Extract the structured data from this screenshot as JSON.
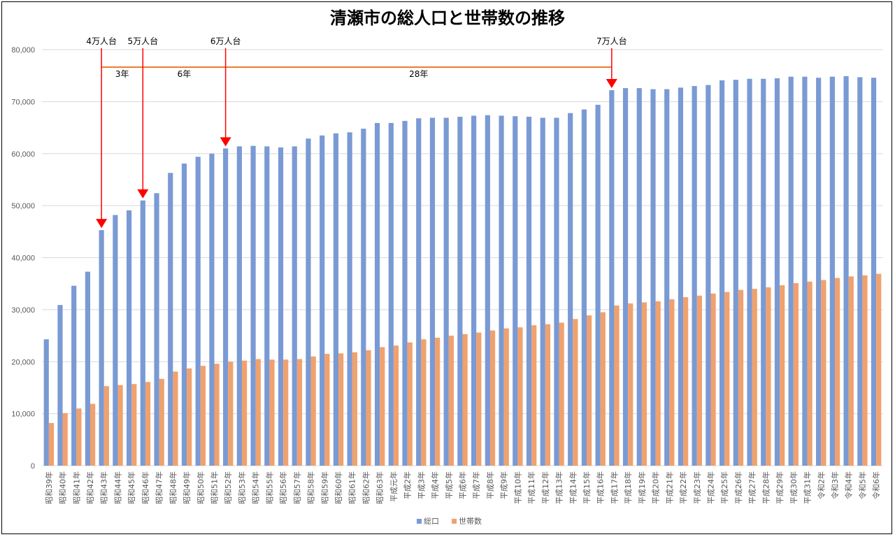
{
  "chart_data": {
    "type": "bar",
    "title": "清瀬市の総人口と世帯数の推移",
    "ylim": [
      0,
      80000
    ],
    "yticks": [
      "0",
      "10,000",
      "20,000",
      "30,000",
      "40,000",
      "50,000",
      "60,000",
      "70,000",
      "80,000"
    ],
    "grid": true,
    "legend_position": "bottom",
    "categories": [
      "昭和39年",
      "昭和40年",
      "昭和41年",
      "昭和42年",
      "昭和43年",
      "昭和44年",
      "昭和45年",
      "昭和46年",
      "昭和47年",
      "昭和48年",
      "昭和49年",
      "昭和50年",
      "昭和51年",
      "昭和52年",
      "昭和53年",
      "昭和54年",
      "昭和55年",
      "昭和56年",
      "昭和57年",
      "昭和58年",
      "昭和59年",
      "昭和60年",
      "昭和61年",
      "昭和62年",
      "昭和63年",
      "平成元年",
      "平成2年",
      "平成3年",
      "平成4年",
      "平成5年",
      "平成6年",
      "平成7年",
      "平成8年",
      "平成9年",
      "平成10年",
      "平成11年",
      "平成12年",
      "平成13年",
      "平成14年",
      "平成15年",
      "平成16年",
      "平成17年",
      "平成18年",
      "平成19年",
      "平成20年",
      "平成21年",
      "平成22年",
      "平成23年",
      "平成24年",
      "平成25年",
      "平成26年",
      "平成27年",
      "平成28年",
      "平成29年",
      "平成30年",
      "平成31年",
      "令和2年",
      "令和3年",
      "令和4年",
      "令和5年",
      "令和6年"
    ],
    "series": [
      {
        "name": "総口",
        "color": "#7a9ad4",
        "values": [
          24300,
          30900,
          34600,
          37300,
          45300,
          48200,
          49100,
          51000,
          52400,
          56300,
          58100,
          59400,
          60000,
          61000,
          61400,
          61500,
          61400,
          61200,
          61400,
          62900,
          63500,
          63900,
          64100,
          64800,
          65900,
          65900,
          66300,
          66800,
          66900,
          66900,
          67100,
          67300,
          67400,
          67300,
          67200,
          67100,
          66900,
          66900,
          67800,
          68500,
          69400,
          72200,
          72600,
          72600,
          72400,
          72400,
          72700,
          73000,
          73200,
          74100,
          74200,
          74400,
          74400,
          74500,
          74800,
          74800,
          74600,
          74800,
          74900,
          74700,
          74600
        ]
      },
      {
        "name": "世帯数",
        "color": "#f0a16e",
        "values": [
          8200,
          10100,
          11000,
          11900,
          15300,
          15500,
          15700,
          16100,
          16700,
          18100,
          18700,
          19200,
          19600,
          20000,
          20200,
          20500,
          20400,
          20400,
          20500,
          21000,
          21500,
          21600,
          21800,
          22200,
          22800,
          23100,
          23700,
          24300,
          24600,
          25000,
          25300,
          25600,
          26000,
          26400,
          26600,
          27000,
          27200,
          27500,
          28200,
          28900,
          29500,
          30800,
          31200,
          31400,
          31600,
          32000,
          32400,
          32700,
          33100,
          33400,
          33800,
          34000,
          34300,
          34700,
          35100,
          35400,
          35700,
          36100,
          36400,
          36600,
          36900
        ]
      }
    ],
    "annotations": {
      "milestones": [
        {
          "label": "4万人台",
          "index": 4
        },
        {
          "label": "5万人台",
          "index": 7
        },
        {
          "label": "6万人台",
          "index": 13
        },
        {
          "label": "7万人台",
          "index": 41
        }
      ],
      "span_labels": [
        {
          "label": "3年",
          "from": 4,
          "to": 7
        },
        {
          "label": "6年",
          "from": 7,
          "to": 13
        },
        {
          "label": "28年",
          "from": 13,
          "to": 41
        }
      ],
      "arrow_color": "#ff0000",
      "span_line_color": "#ed7d31"
    }
  }
}
